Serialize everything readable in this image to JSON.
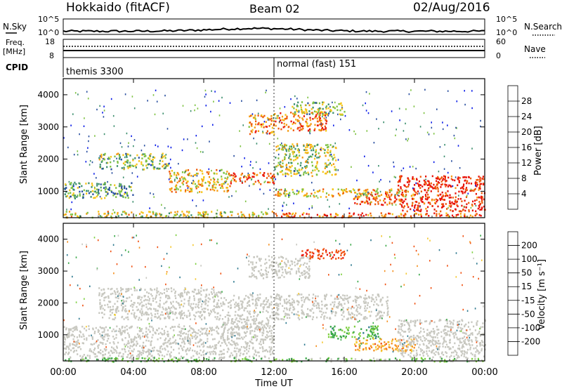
{
  "header": {
    "title": "Hokkaido (fitACF)",
    "beam": "Beam 02",
    "date": "02/Aug/2016"
  },
  "noise_panel": {
    "left_label": "N.Sky",
    "left_ticks": [
      "10^5",
      "10^0"
    ],
    "right_label": "N.Search",
    "right_ticks": [
      "10^5",
      "10^0"
    ]
  },
  "freq_panel": {
    "left_label_line1": "Freq.",
    "left_label_line2": "[MHz]",
    "left_ticks": [
      "18",
      "8"
    ],
    "right_label": "Nave",
    "right_ticks": [
      "60",
      "0"
    ]
  },
  "cpid_panel": {
    "label": "CPID",
    "segments": [
      {
        "text": "themis 3300",
        "start": "00:00"
      },
      {
        "text": "normal (fast) 151",
        "start": "12:00"
      }
    ]
  },
  "power_panel": {
    "ylabel": "Slant Range [km]",
    "yticks": [
      "1000",
      "2000",
      "3000",
      "4000"
    ],
    "colorbar_label": "Power [dB]",
    "colorbar_ticks": [
      "4",
      "8",
      "12",
      "16",
      "20",
      "24",
      "28"
    ],
    "colorbar_colors": [
      "#0a1ce8",
      "#2a4fa0",
      "#3d8f6e",
      "#7ec242",
      "#f5c518",
      "#f59a10",
      "#ee5a0a",
      "#e8140a"
    ]
  },
  "velocity_panel": {
    "ylabel": "Slant Range [km]",
    "yticks": [
      "1000",
      "2000",
      "3000",
      "4000"
    ],
    "colorbar_label": "Velocity [m s⁻¹]",
    "colorbar_ticks": [
      "200",
      "100",
      "50",
      "15",
      "-15",
      "-50",
      "-100",
      "-200"
    ],
    "colorbar_colors": [
      "#1a2fc8",
      "#2f7a90",
      "#3aa848",
      "#7ed040",
      "#c8c8c0",
      "#f5c830",
      "#f59020",
      "#f05010",
      "#e8140a"
    ]
  },
  "xaxis": {
    "ticks": [
      "00:00",
      "04:00",
      "08:00",
      "12:00",
      "16:00",
      "20:00",
      "00:00"
    ],
    "label": "Time UT"
  },
  "chart_data": [
    {
      "type": "heatmap",
      "name": "Power",
      "x_range_hours": [
        0,
        24
      ],
      "y_range_km": [
        180,
        4500
      ],
      "color_range_db": [
        0,
        32
      ],
      "blobs": [
        {
          "t0": 0.0,
          "t1": 4.0,
          "r0": 800,
          "r1": 1300,
          "level": 0.35
        },
        {
          "t0": 0.0,
          "t1": 12.0,
          "r0": 200,
          "r1": 400,
          "level": 0.55
        },
        {
          "t0": 2.0,
          "t1": 6.0,
          "r0": 1700,
          "r1": 2200,
          "level": 0.45
        },
        {
          "t0": 6.0,
          "t1": 9.5,
          "r0": 1000,
          "r1": 1700,
          "level": 0.6
        },
        {
          "t0": 9.5,
          "t1": 12.0,
          "r0": 1250,
          "r1": 1600,
          "level": 0.85
        },
        {
          "t0": 10.5,
          "t1": 12.0,
          "r0": 2800,
          "r1": 3400,
          "level": 0.7
        },
        {
          "t0": 12.0,
          "t1": 15.0,
          "r0": 2900,
          "r1": 3500,
          "level": 0.75
        },
        {
          "t0": 13.0,
          "t1": 16.0,
          "r0": 3400,
          "r1": 3800,
          "level": 0.45
        },
        {
          "t0": 12.0,
          "t1": 15.5,
          "r0": 1500,
          "r1": 2500,
          "level": 0.5
        },
        {
          "t0": 12.0,
          "t1": 20.0,
          "r0": 850,
          "r1": 1100,
          "level": 0.6
        },
        {
          "t0": 16.5,
          "t1": 19.0,
          "r0": 600,
          "r1": 1000,
          "level": 0.85
        },
        {
          "t0": 12.0,
          "t1": 24.0,
          "r0": 200,
          "r1": 350,
          "level": 0.8
        },
        {
          "t0": 19.0,
          "t1": 24.0,
          "r0": 400,
          "r1": 1500,
          "level": 0.95
        }
      ]
    },
    {
      "type": "heatmap",
      "name": "Velocity",
      "x_range_hours": [
        0,
        24
      ],
      "y_range_km": [
        180,
        4500
      ],
      "color_range_ms": [
        -200,
        200
      ],
      "blobs": [
        {
          "t0": 0.0,
          "t1": 12.0,
          "r0": 300,
          "r1": 1300,
          "vel": 0
        },
        {
          "t0": 2.0,
          "t1": 9.0,
          "r0": 1500,
          "r1": 2500,
          "vel": 0
        },
        {
          "t0": 9.0,
          "t1": 12.0,
          "r0": 1200,
          "r1": 2300,
          "vel": 0
        },
        {
          "t0": 10.5,
          "t1": 14.0,
          "r0": 2800,
          "r1": 3500,
          "vel": 0
        },
        {
          "t0": 13.5,
          "t1": 16.0,
          "r0": 3400,
          "r1": 3700,
          "vel": -180
        },
        {
          "t0": 12.0,
          "t1": 18.5,
          "r0": 1500,
          "r1": 2300,
          "vel": 0
        },
        {
          "t0": 15.0,
          "t1": 18.0,
          "r0": 900,
          "r1": 1300,
          "vel": 60
        },
        {
          "t0": 16.5,
          "t1": 20.0,
          "r0": 500,
          "r1": 900,
          "vel": -60
        },
        {
          "t0": 19.0,
          "t1": 24.0,
          "r0": 300,
          "r1": 1500,
          "vel": 0
        },
        {
          "t0": 0.0,
          "t1": 24.0,
          "r0": 180,
          "r1": 300,
          "vel": 40
        }
      ]
    }
  ]
}
